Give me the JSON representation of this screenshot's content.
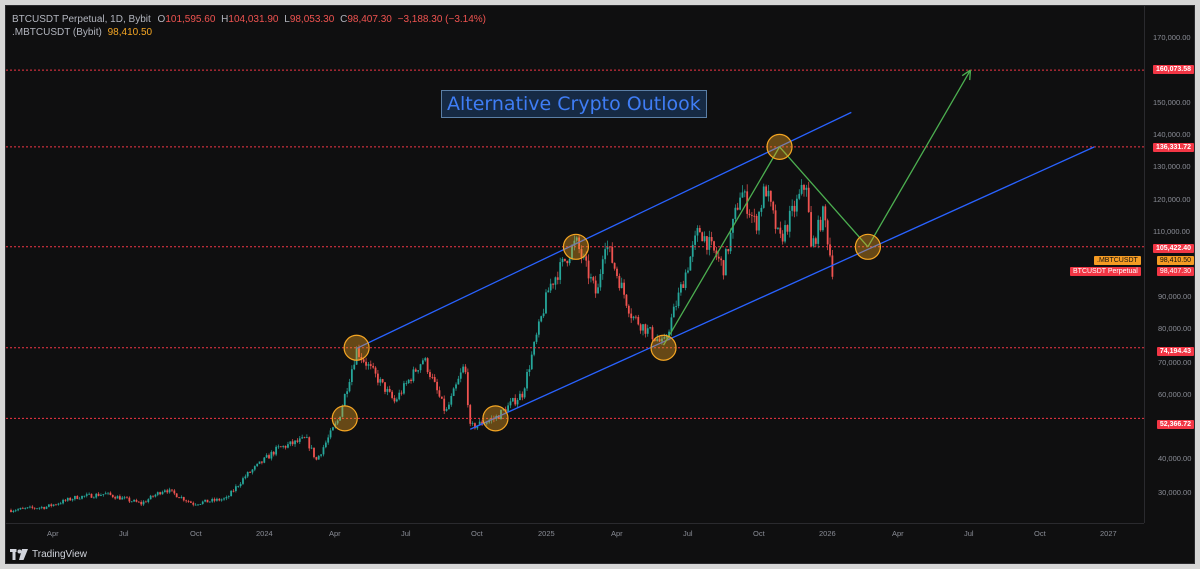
{
  "legend": {
    "symbol": "BTCUSDT Perpetual, 1D, Bybit",
    "open_label": "O",
    "open": "101,595.60",
    "high_label": "H",
    "high": "104,031.90",
    "low_label": "L",
    "low": "98,053.30",
    "close_label": "C",
    "close": "98,407.30",
    "change": "−3,188.30 (−3.14%)",
    "index_symbol": ".MBTCUSDT (Bybit)",
    "index_value": "98,410.50"
  },
  "annotation": {
    "title": "Alternative Crypto Outlook"
  },
  "price_scale": {
    "ticks": [
      "170,000.00",
      "150,000.00",
      "140,000.00",
      "130,000.00",
      "120,000.00",
      "110,000.00",
      "90,000.00",
      "80,000.00",
      "70,000.00",
      "60,000.00",
      "40,000.00",
      "30,000.00"
    ],
    "hlines": [
      "160,073.58",
      "136,331.72",
      "105,422.40",
      "74,194.43",
      "52,366.72"
    ],
    "index_chip_name": ".MBTCUSDT",
    "index_chip_value": "98,410.50",
    "last_chip_name": "BTCUSDT Perpetual",
    "last_chip_value": "98,407.30"
  },
  "time_axis": {
    "labels": [
      "Apr",
      "Jul",
      "Oct",
      "2024",
      "Apr",
      "Jul",
      "Oct",
      "2025",
      "Apr",
      "Jul",
      "Oct",
      "2026",
      "Apr",
      "Jul",
      "Oct",
      "2027"
    ]
  },
  "footer": {
    "brand": "TradingView"
  },
  "colors": {
    "background": "#0f0f10",
    "up": "#26a69a",
    "down": "#ef5350",
    "channel": "#2962ff",
    "projection": "#4caf50",
    "hline": "#f23645",
    "circle": "#f5a623"
  },
  "chart_data": {
    "type": "candlestick",
    "symbol": "BTCUSDT Perpetual",
    "interval": "1D",
    "exchange": "Bybit",
    "y_scale": "linear",
    "ylim": [
      24000,
      178000
    ],
    "horizontal_levels": [
      160073.58,
      136331.72,
      105422.4,
      74194.43,
      52366.72
    ],
    "price_path": [
      [
        "2023-01-01",
        24000
      ],
      [
        "2023-02-15",
        25000
      ],
      [
        "2023-03-25",
        28000
      ],
      [
        "2023-05-01",
        29000
      ],
      [
        "2023-06-15",
        26000
      ],
      [
        "2023-07-15",
        30500
      ],
      [
        "2023-08-20",
        26000
      ],
      [
        "2023-10-01",
        27500
      ],
      [
        "2023-10-25",
        34500
      ],
      [
        "2023-12-05",
        43000
      ],
      [
        "2024-01-10",
        46000
      ],
      [
        "2024-01-23",
        39500
      ],
      [
        "2024-02-20",
        52000
      ],
      [
        "2024-03-14",
        73500
      ],
      [
        "2024-05-01",
        57500
      ],
      [
        "2024-06-07",
        71000
      ],
      [
        "2024-07-05",
        54000
      ],
      [
        "2024-07-29",
        69000
      ],
      [
        "2024-08-05",
        49500
      ],
      [
        "2024-09-06",
        52500
      ],
      [
        "2024-10-10",
        60000
      ],
      [
        "2024-11-13",
        93000
      ],
      [
        "2024-12-17",
        107000
      ],
      [
        "2025-01-13",
        90000
      ],
      [
        "2025-01-22",
        108000
      ],
      [
        "2025-02-26",
        84000
      ],
      [
        "2025-04-07",
        75000
      ],
      [
        "2025-05-22",
        111000
      ],
      [
        "2025-06-22",
        99000
      ],
      [
        "2025-07-14",
        123000
      ],
      [
        "2025-08-02",
        112000
      ],
      [
        "2025-08-14",
        124000
      ],
      [
        "2025-09-01",
        107000
      ],
      [
        "2025-10-06",
        126000
      ],
      [
        "2025-10-10",
        104000
      ],
      [
        "2025-10-27",
        116000
      ],
      [
        "2025-11-07",
        98407.3
      ]
    ],
    "channel_upper": [
      [
        "2024-03-14",
        74000
      ],
      [
        "2025-12-01",
        147000
      ]
    ],
    "channel_lower": [
      [
        "2024-08-05",
        49000
      ],
      [
        "2026-10-05",
        136331.72
      ]
    ],
    "projection_path": [
      [
        "2025-04-07",
        75000
      ],
      [
        "2025-09-01",
        136331.72
      ],
      [
        "2025-12-22",
        105422.4
      ],
      [
        "2026-05-01",
        160073.58
      ]
    ],
    "circled_points": [
      [
        "2024-02-28",
        52366.72
      ],
      [
        "2024-03-14",
        74194.43
      ],
      [
        "2024-09-06",
        52366.72
      ],
      [
        "2024-12-17",
        105422.4
      ],
      [
        "2025-04-07",
        74194.43
      ],
      [
        "2025-09-01",
        136331.72
      ],
      [
        "2025-12-22",
        105422.4
      ]
    ]
  }
}
